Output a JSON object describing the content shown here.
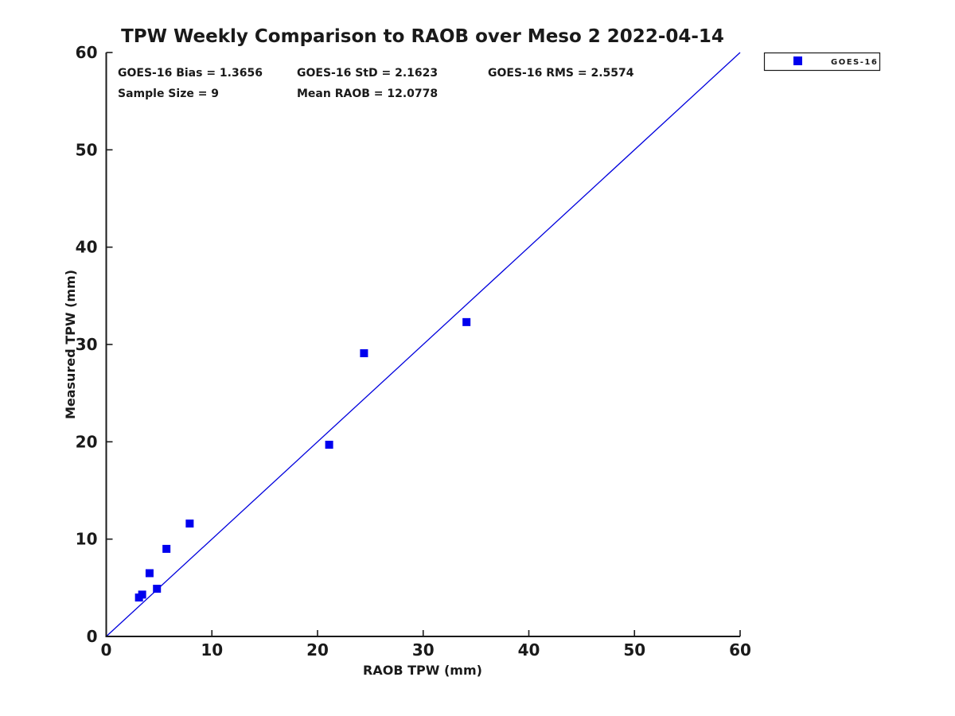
{
  "chart_data": {
    "type": "scatter",
    "title": "TPW Weekly Comparison to RAOB over Meso 2 2022-04-14",
    "xlabel": "RAOB TPW (mm)",
    "ylabel": "Measured TPW (mm)",
    "xlim": [
      0,
      60
    ],
    "ylim": [
      0,
      60
    ],
    "x_ticks": [
      0,
      10,
      20,
      30,
      40,
      50,
      60
    ],
    "y_ticks": [
      0,
      10,
      20,
      30,
      40,
      50,
      60
    ],
    "grid": false,
    "box": "left-bottom-only",
    "series": [
      {
        "name": "GOES-16",
        "marker": "square",
        "color": "#0000ee",
        "points": [
          [
            3.1,
            4.0
          ],
          [
            3.4,
            4.3
          ],
          [
            4.1,
            6.5
          ],
          [
            4.8,
            4.9
          ],
          [
            5.7,
            9.0
          ],
          [
            7.9,
            11.6
          ],
          [
            21.1,
            19.7
          ],
          [
            24.4,
            29.1
          ],
          [
            34.1,
            32.3
          ]
        ]
      }
    ],
    "reference_line": {
      "meaning": "1:1 line",
      "from": [
        0,
        0
      ],
      "to": [
        60,
        60
      ],
      "color": "#0000dd"
    },
    "legend": {
      "position": "outside-top-right",
      "entries": [
        {
          "label": "GOES-16",
          "marker": "square",
          "color": "#0000ee"
        }
      ]
    },
    "annotations": {
      "bias": "GOES-16 Bias = 1.3656",
      "std": "GOES-16 StD = 2.1623",
      "rms": "GOES-16 RMS = 2.5574",
      "sample_size": "Sample Size = 9",
      "mean_raob": "Mean RAOB = 12.0778"
    }
  },
  "colors": {
    "marker_blue": "#0000ee",
    "line_blue": "#0000dd",
    "axis_black": "#1a1a1a",
    "background": "#ffffff"
  }
}
